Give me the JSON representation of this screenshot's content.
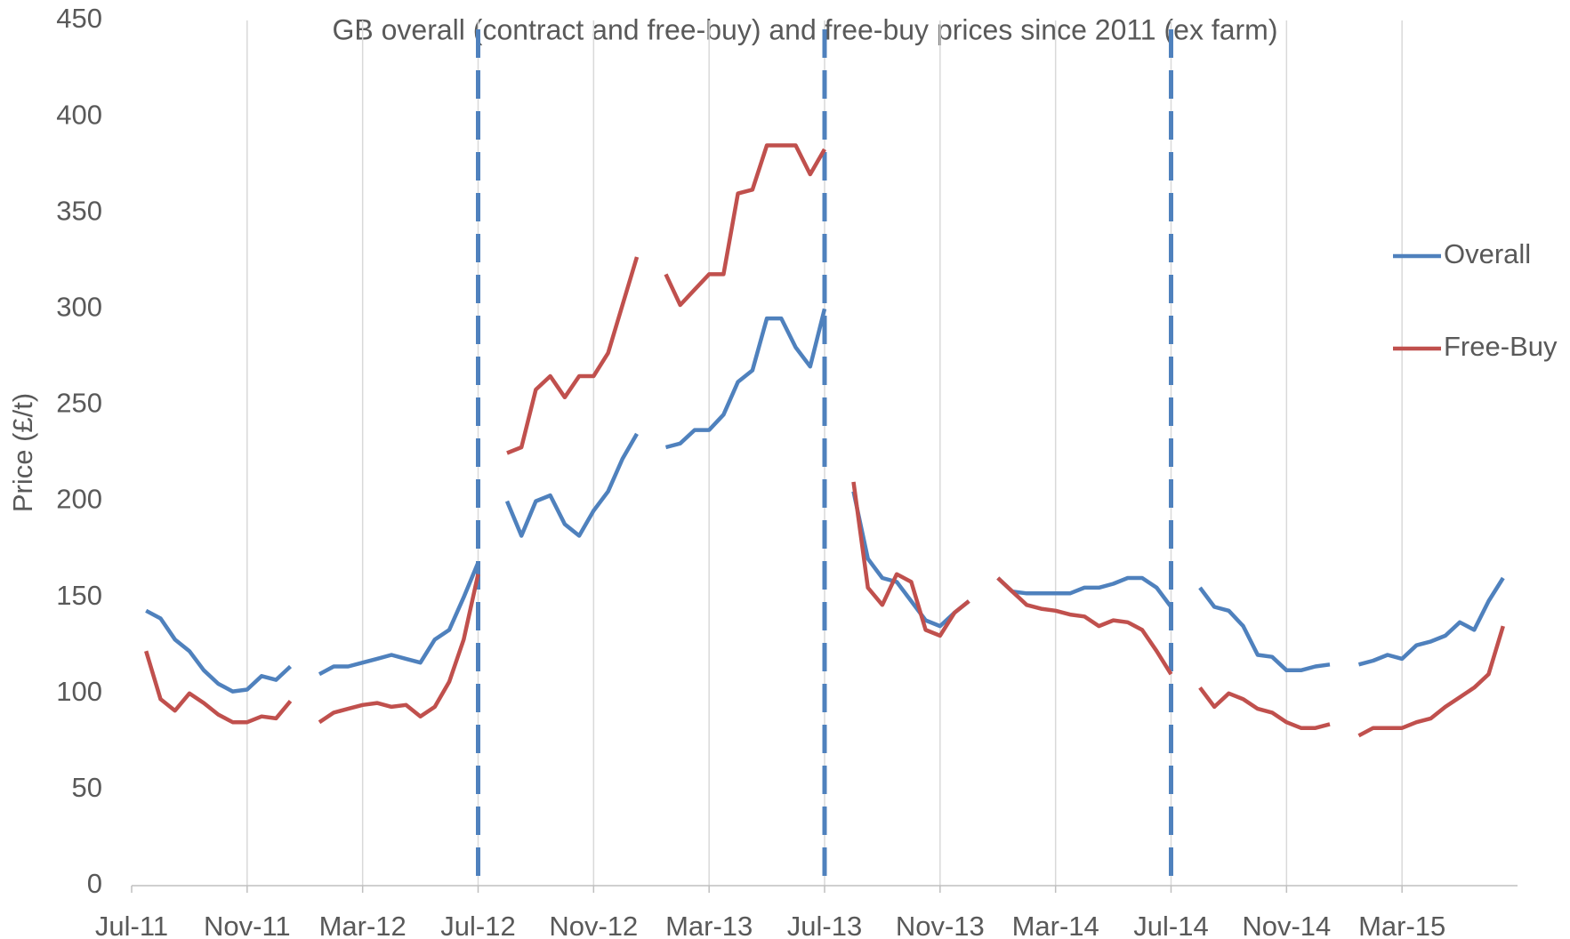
{
  "chart_data": {
    "type": "line",
    "title": "GB overall (contract and free-buy) and free-buy prices since 2011 (ex farm)",
    "y_axis_label": "Price (£/t)",
    "categories": [
      "Jul-11",
      null,
      null,
      null,
      null,
      null,
      null,
      null,
      "Nov-11",
      null,
      null,
      null,
      null,
      null,
      null,
      null,
      "Mar-12",
      null,
      null,
      null,
      null,
      null,
      null,
      null,
      "Jul-12",
      null,
      null,
      null,
      null,
      null,
      null,
      null,
      "Nov-12",
      null,
      null,
      null,
      null,
      null,
      null,
      null,
      "Mar-13",
      null,
      null,
      null,
      null,
      null,
      null,
      null,
      "Jul-13",
      null,
      null,
      null,
      null,
      null,
      null,
      null,
      "Nov-13",
      null,
      null,
      null,
      null,
      null,
      null,
      null,
      "Mar-14",
      null,
      null,
      null,
      null,
      null,
      null,
      null,
      "Jul-14",
      null,
      null,
      null,
      null,
      null,
      null,
      null,
      "Nov-14",
      null,
      null,
      null,
      null,
      null,
      null,
      null,
      "Mar-15",
      null,
      null,
      null,
      null,
      null,
      null,
      null
    ],
    "series": [
      {
        "name": "Overall",
        "color": "#4f81bd",
        "values": [
          null,
          143,
          139,
          128,
          122,
          112,
          105,
          101,
          102,
          109,
          107,
          114,
          null,
          110,
          114,
          114,
          116,
          118,
          120,
          118,
          116,
          128,
          133,
          150,
          168,
          null,
          200,
          182,
          200,
          203,
          188,
          182,
          195,
          205,
          222,
          235,
          null,
          228,
          230,
          237,
          237,
          245,
          262,
          268,
          295,
          295,
          280,
          270,
          300,
          null,
          205,
          170,
          160,
          158,
          148,
          138,
          135,
          142,
          148,
          null,
          160,
          153,
          152,
          152,
          152,
          152,
          155,
          155,
          157,
          160,
          160,
          155,
          145,
          null,
          155,
          145,
          143,
          135,
          120,
          119,
          112,
          112,
          114,
          115,
          null,
          115,
          117,
          120,
          118,
          125,
          127,
          130,
          137,
          133,
          148,
          160
        ]
      },
      {
        "name": "Free-Buy",
        "color": "#c0504d",
        "values": [
          null,
          122,
          97,
          91,
          100,
          95,
          89,
          85,
          85,
          88,
          87,
          96,
          null,
          85,
          90,
          92,
          94,
          95,
          93,
          94,
          88,
          93,
          106,
          128,
          162,
          null,
          225,
          228,
          258,
          265,
          254,
          265,
          265,
          277,
          302,
          327,
          null,
          318,
          302,
          310,
          318,
          318,
          360,
          362,
          385,
          385,
          385,
          370,
          383,
          null,
          210,
          155,
          146,
          162,
          158,
          133,
          130,
          142,
          148,
          null,
          160,
          153,
          146,
          144,
          143,
          141,
          140,
          135,
          138,
          137,
          133,
          122,
          110,
          null,
          103,
          93,
          100,
          97,
          92,
          90,
          85,
          82,
          82,
          84,
          null,
          78,
          82,
          82,
          82,
          85,
          87,
          93,
          98,
          103,
          110,
          135
        ]
      }
    ],
    "ylim": [
      0,
      450
    ],
    "yticks": [
      0,
      50,
      100,
      150,
      200,
      250,
      300,
      350,
      400,
      450
    ],
    "grid": "x",
    "legend": "right",
    "vertical_lines": {
      "at": [
        "Jul-12",
        "Jul-13",
        "Jul-14"
      ],
      "color": "#4f81bd",
      "style": "dashed"
    }
  }
}
